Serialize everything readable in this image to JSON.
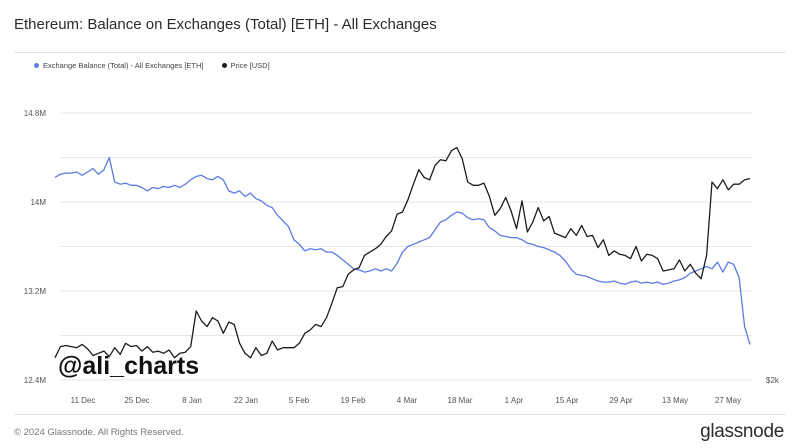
{
  "title": "Ethereum: Balance on Exchanges (Total) [ETH] - All Exchanges",
  "legend": {
    "balance_label": "Exchange Balance (Total) - All Exchanges [ETH]",
    "price_label": "Price [USD]"
  },
  "footer": {
    "copyright": "© 2024 Glassnode. All Rights Reserved.",
    "brand": "glassnode"
  },
  "watermark": "@ali_charts",
  "colors": {
    "balance": "#5B7BE0",
    "price": "#1c1c1c",
    "grid": "#e6e6e6"
  },
  "chart_data": {
    "type": "line",
    "x_ticks": [
      "11 Dec",
      "25 Dec",
      "8 Jan",
      "22 Jan",
      "5 Feb",
      "19 Feb",
      "4 Mar",
      "18 Mar",
      "1 Apr",
      "15 Apr",
      "29 Apr",
      "13 May",
      "27 May"
    ],
    "y_left_ticks": [
      "14.8M",
      "14M",
      "13.2M",
      "12.4M"
    ],
    "y_left_range": [
      12400000,
      14800000
    ],
    "y_right_ticks": [
      "$2k"
    ],
    "grid": "horizontal",
    "legend_position": "top-left",
    "series": [
      {
        "name": "Exchange Balance (Total) - All Exchanges [ETH]",
        "axis": "left",
        "values": [
          14.22,
          14.25,
          14.26,
          14.26,
          14.27,
          14.24,
          14.27,
          14.3,
          14.25,
          14.29,
          14.4,
          14.18,
          14.16,
          14.17,
          14.15,
          14.15,
          14.13,
          14.1,
          14.13,
          14.12,
          14.14,
          14.13,
          14.15,
          14.13,
          14.16,
          14.2,
          14.23,
          14.24,
          14.21,
          14.2,
          14.23,
          14.2,
          14.1,
          14.08,
          14.1,
          14.05,
          14.08,
          14.03,
          14.01,
          13.97,
          13.95,
          13.88,
          13.83,
          13.78,
          13.66,
          13.62,
          13.56,
          13.58,
          13.57,
          13.58,
          13.55,
          13.55,
          13.52,
          13.48,
          13.44,
          13.4,
          13.39,
          13.37,
          13.38,
          13.4,
          13.38,
          13.4,
          13.38,
          13.45,
          13.55,
          13.6,
          13.62,
          13.64,
          13.66,
          13.68,
          13.75,
          13.82,
          13.84,
          13.88,
          13.91,
          13.9,
          13.86,
          13.84,
          13.85,
          13.84,
          13.77,
          13.74,
          13.7,
          13.69,
          13.68,
          13.68,
          13.66,
          13.63,
          13.62,
          13.6,
          13.59,
          13.57,
          13.55,
          13.52,
          13.47,
          13.4,
          13.35,
          13.34,
          13.33,
          13.31,
          13.29,
          13.28,
          13.28,
          13.29,
          13.27,
          13.26,
          13.28,
          13.29,
          13.27,
          13.28,
          13.27,
          13.28,
          13.26,
          13.27,
          13.29,
          13.3,
          13.32,
          13.36,
          13.38,
          13.4,
          13.42,
          13.4,
          13.46,
          13.37,
          13.46,
          13.44,
          13.32,
          12.88,
          12.72
        ]
      },
      {
        "name": "Price [USD]",
        "axis": "right",
        "values": [
          2200,
          2300,
          2310,
          2300,
          2290,
          2320,
          2280,
          2220,
          2240,
          2260,
          2210,
          2290,
          2230,
          2330,
          2300,
          2310,
          2260,
          2300,
          2250,
          2260,
          2240,
          2270,
          2200,
          2240,
          2250,
          2300,
          2620,
          2530,
          2480,
          2560,
          2530,
          2420,
          2520,
          2500,
          2330,
          2240,
          2200,
          2290,
          2220,
          2240,
          2350,
          2270,
          2290,
          2290,
          2290,
          2330,
          2420,
          2450,
          2500,
          2480,
          2560,
          2690,
          2830,
          2840,
          2950,
          2990,
          3010,
          3120,
          3150,
          3180,
          3220,
          3290,
          3340,
          3490,
          3510,
          3620,
          3760,
          3890,
          3820,
          3800,
          3930,
          3980,
          3970,
          4060,
          4090,
          3990,
          3780,
          3750,
          3750,
          3770,
          3650,
          3480,
          3540,
          3640,
          3520,
          3360,
          3610,
          3330,
          3420,
          3550,
          3430,
          3470,
          3320,
          3300,
          3280,
          3360,
          3300,
          3390,
          3290,
          3300,
          3190,
          3260,
          3120,
          3160,
          3130,
          3120,
          3090,
          3200,
          3070,
          3130,
          3120,
          3090,
          2980,
          2990,
          3000,
          3080,
          2980,
          3040,
          2960,
          2910,
          3120,
          3780,
          3720,
          3800,
          3710,
          3760,
          3760,
          3800,
          3810
        ]
      }
    ]
  }
}
